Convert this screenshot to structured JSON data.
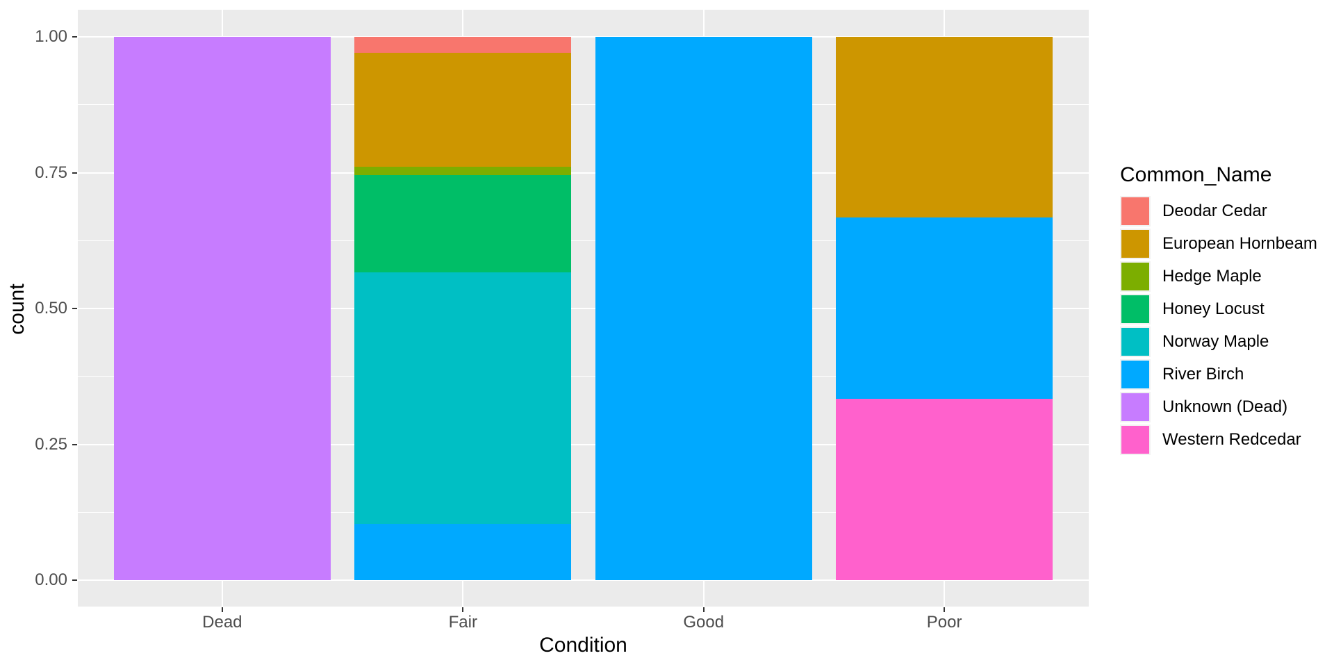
{
  "chart_data": {
    "type": "bar",
    "stacking": "fill",
    "xlabel": "Condition",
    "ylabel": "count",
    "legend_title": "Common_Name",
    "legend_position": "right",
    "grid": true,
    "categories": [
      "Dead",
      "Fair",
      "Good",
      "Poor"
    ],
    "ylim": [
      0,
      1
    ],
    "y_ticks": [
      {
        "label": "0.00",
        "value": 0
      },
      {
        "label": "0.25",
        "value": 0.25
      },
      {
        "label": "0.50",
        "value": 0.5
      },
      {
        "label": "0.75",
        "value": 0.75
      },
      {
        "label": "1.00",
        "value": 1
      }
    ],
    "y_minor_gridlines": [
      0.125,
      0.375,
      0.625,
      0.875
    ],
    "series": [
      {
        "name": "Deodar Cedar",
        "color": "#F8766D",
        "values": [
          0,
          0.03,
          0,
          0
        ]
      },
      {
        "name": "European Hornbeam",
        "color": "#CD9600",
        "values": [
          0,
          0.209,
          0,
          0.333
        ]
      },
      {
        "name": "Hedge Maple",
        "color": "#7CAE00",
        "values": [
          0,
          0.015,
          0,
          0
        ]
      },
      {
        "name": "Honey Locust",
        "color": "#00BE67",
        "values": [
          0,
          0.179,
          0,
          0
        ]
      },
      {
        "name": "Norway Maple",
        "color": "#00BFC4",
        "values": [
          0,
          0.463,
          0,
          0
        ]
      },
      {
        "name": "River Birch",
        "color": "#00A9FF",
        "values": [
          0,
          0.104,
          1.0,
          0.333
        ]
      },
      {
        "name": "Unknown (Dead)",
        "color": "#C77CFF",
        "values": [
          1.0,
          0,
          0,
          0
        ]
      },
      {
        "name": "Western Redcedar",
        "color": "#FF61CC",
        "values": [
          0,
          0,
          0,
          0.334
        ]
      }
    ]
  },
  "style": {
    "panel_background": "#EBEBEB",
    "grid_color": "#FFFFFF",
    "tick_mark_color": "#333333",
    "tick_label_color": "#4D4D4D",
    "text_color": "#000000",
    "figure_background": "#FFFFFF"
  }
}
